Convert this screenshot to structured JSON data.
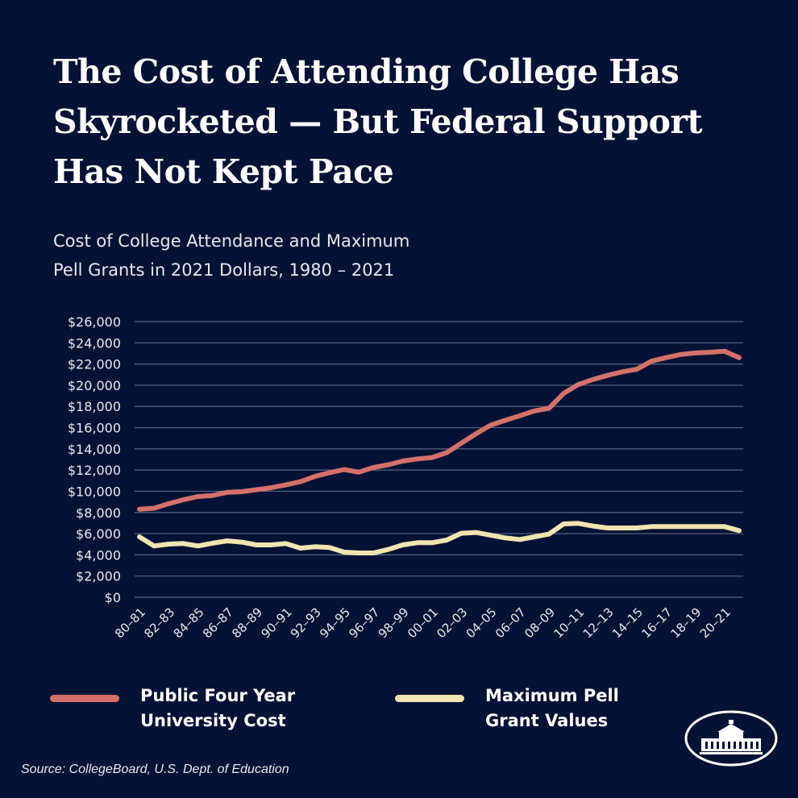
{
  "title": "The Cost of Attending College Has Skyrocketed — But Federal Support Has Not Kept Pace",
  "subtitle_line1": "Cost of College Attendance and Maximum",
  "subtitle_line2": "Pell Grants in 2021 Dollars, 1980 – 2021",
  "source": "Source: CollegeBoard, U.S. Dept. of Education",
  "logo": "White House seal",
  "colors": {
    "background": "#041335",
    "public_cost": "#d4706a",
    "pell": "#f2e4b0",
    "grid": "#5a6683"
  },
  "chart_data": {
    "type": "line",
    "title": "Cost of College Attendance and Maximum Pell Grants in 2021 Dollars, 1980 – 2021",
    "xlabel": "",
    "ylabel": "",
    "ylim": [
      0,
      26000
    ],
    "grid": true,
    "legend_placement": "bottom",
    "yticks": [
      "$0",
      "$2,000",
      "$4,000",
      "$6,000",
      "$8,000",
      "$10,000",
      "$12,000",
      "$14,000",
      "$16,000",
      "$18,000",
      "$20,000",
      "$22,000",
      "$24,000",
      "$26,000"
    ],
    "xtick_labels": [
      "80–81",
      "82–83",
      "84–85",
      "86–87",
      "88–89",
      "90–91",
      "92–93",
      "94–95",
      "96–97",
      "98–99",
      "00–01",
      "02–03",
      "04–05",
      "06–07",
      "08–09",
      "10–11",
      "12–13",
      "14–15",
      "16–17",
      "18–19",
      "20–21"
    ],
    "x": [
      "80–81",
      "81–82",
      "82–83",
      "83–84",
      "84–85",
      "85–86",
      "86–87",
      "87–88",
      "88–89",
      "89–90",
      "90–91",
      "91–92",
      "92–93",
      "93–94",
      "94–95",
      "95–96",
      "96–97",
      "97–98",
      "98–99",
      "99–00",
      "00–01",
      "01–02",
      "02–03",
      "03–04",
      "04–05",
      "05–06",
      "06–07",
      "07–08",
      "08–09",
      "09–10",
      "10–11",
      "11–12",
      "12–13",
      "13–14",
      "14–15",
      "15–16",
      "16–17",
      "17–18",
      "18–19",
      "19–20",
      "20–21",
      "21–22"
    ],
    "series": [
      {
        "name": "Public Four Year University Cost",
        "color": "#d4706a",
        "values": [
          8310,
          8400,
          8830,
          9200,
          9500,
          9600,
          9900,
          9960,
          10150,
          10330,
          10600,
          10900,
          11400,
          11750,
          12050,
          11800,
          12250,
          12500,
          12850,
          13050,
          13180,
          13640,
          14530,
          15420,
          16230,
          16690,
          17120,
          17580,
          17830,
          19230,
          20060,
          20540,
          20930,
          21260,
          21510,
          22270,
          22600,
          22900,
          23040,
          23110,
          23210,
          22600
        ]
      },
      {
        "name": "Maximum Pell Grant Values",
        "color": "#f2e4b0",
        "values": [
          5700,
          4840,
          5020,
          5070,
          4840,
          5100,
          5320,
          5200,
          4940,
          4940,
          5070,
          4640,
          4770,
          4690,
          4260,
          4180,
          4180,
          4510,
          4940,
          5150,
          5150,
          5400,
          6040,
          6110,
          5860,
          5600,
          5450,
          5700,
          5960,
          6920,
          6970,
          6720,
          6540,
          6540,
          6540,
          6670,
          6670,
          6670,
          6670,
          6670,
          6670,
          6290
        ]
      }
    ]
  }
}
